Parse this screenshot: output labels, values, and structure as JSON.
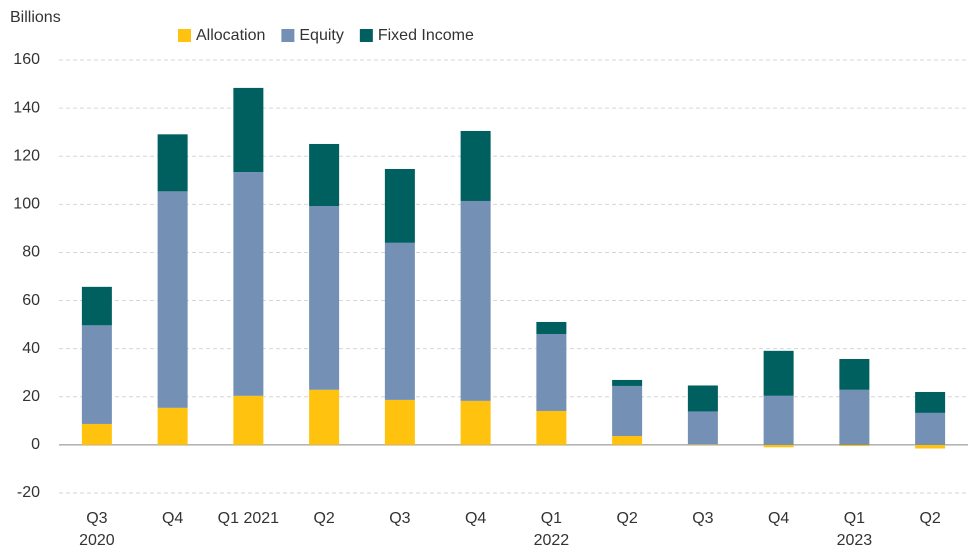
{
  "chart_data": {
    "type": "stacked_bar",
    "y_label": "Billions",
    "categories": [
      "Q3\n2020",
      "Q4",
      "Q1 2021",
      "Q2",
      "Q3",
      "Q4",
      "Q1\n2022",
      "Q2",
      "Q3",
      "Q4",
      "Q1\n2023",
      "Q2"
    ],
    "series": [
      {
        "name": "Allocation",
        "color": "#ffc20e",
        "values": [
          8.7,
          15.4,
          20.4,
          22.9,
          18.7,
          18.3,
          14.1,
          3.7,
          0.2,
          -1,
          -0.5,
          -1.5
        ]
      },
      {
        "name": "Equity",
        "color": "#7490b5",
        "values": [
          41,
          90,
          93,
          76.4,
          65.3,
          83.1,
          32,
          20.8,
          13.7,
          20.4,
          22.9,
          13.3
        ]
      },
      {
        "name": "Fixed Income",
        "color": "#005f5f",
        "values": [
          16,
          23.7,
          35,
          25.8,
          30.7,
          29.1,
          5,
          2.5,
          10.8,
          18.7,
          12.8,
          8.7
        ]
      }
    ],
    "ylim": [
      -20,
      160
    ],
    "yticks": [
      -20,
      0,
      20,
      40,
      60,
      80,
      100,
      120,
      140,
      160
    ],
    "grid": true
  }
}
